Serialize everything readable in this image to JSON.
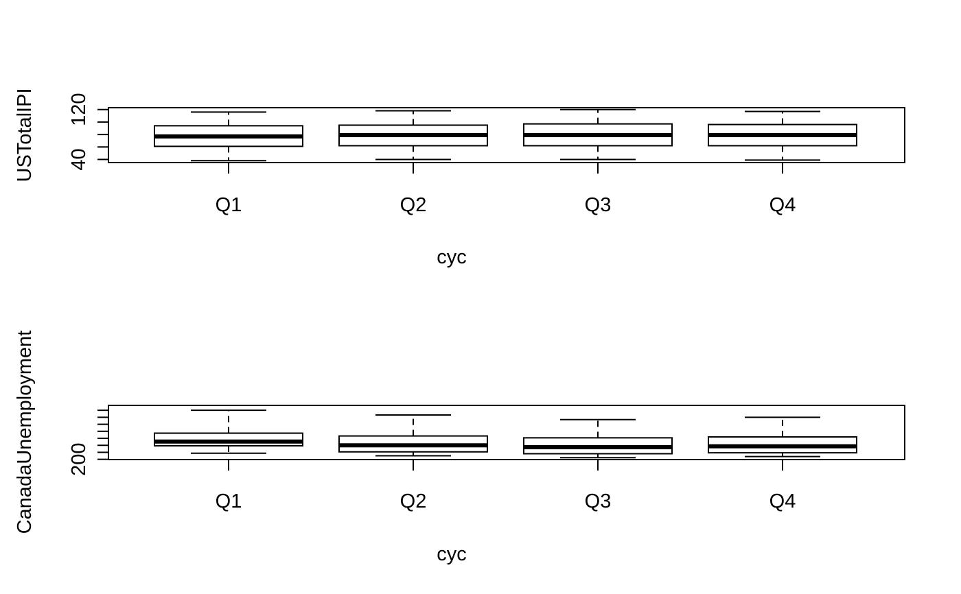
{
  "chart_data": [
    {
      "type": "boxplot",
      "title": "",
      "xlabel": "cyc",
      "ylabel": "USTotalIPI",
      "categories": [
        "Q1",
        "Q2",
        "Q3",
        "Q4"
      ],
      "ylim": [
        35,
        123
      ],
      "y_ticks": [
        40,
        60,
        80,
        100,
        120
      ],
      "y_tick_labels": [
        "40",
        "",
        "",
        "",
        "120"
      ],
      "boxes": [
        {
          "whisker_low": 38,
          "q1": 61,
          "median": 77,
          "q3": 94,
          "whisker_high": 116
        },
        {
          "whisker_low": 40,
          "q1": 62,
          "median": 79,
          "q3": 95,
          "whisker_high": 118
        },
        {
          "whisker_low": 40,
          "q1": 62,
          "median": 79,
          "q3": 97,
          "whisker_high": 120
        },
        {
          "whisker_low": 39,
          "q1": 62,
          "median": 79,
          "q3": 96,
          "whisker_high": 117
        }
      ],
      "grid": false
    },
    {
      "type": "boxplot",
      "title": "",
      "xlabel": "cyc",
      "ylabel": "CanadaUnemployment",
      "categories": [
        "Q1",
        "Q2",
        "Q3",
        "Q4"
      ],
      "ylim": [
        195,
        1355
      ],
      "y_ticks": [
        200,
        350,
        500,
        650,
        800,
        950,
        1100,
        1250
      ],
      "y_tick_labels": [
        "200",
        "",
        "",
        "",
        "",
        "",
        "",
        ""
      ],
      "boxes": [
        {
          "whisker_low": 330,
          "q1": 490,
          "median": 580,
          "q3": 760,
          "whisker_high": 1250
        },
        {
          "whisker_low": 275,
          "q1": 360,
          "median": 500,
          "q3": 700,
          "whisker_high": 1150
        },
        {
          "whisker_low": 235,
          "q1": 320,
          "median": 460,
          "q3": 660,
          "whisker_high": 1050
        },
        {
          "whisker_low": 260,
          "q1": 340,
          "median": 480,
          "q3": 680,
          "whisker_high": 1100
        }
      ],
      "grid": false
    }
  ]
}
